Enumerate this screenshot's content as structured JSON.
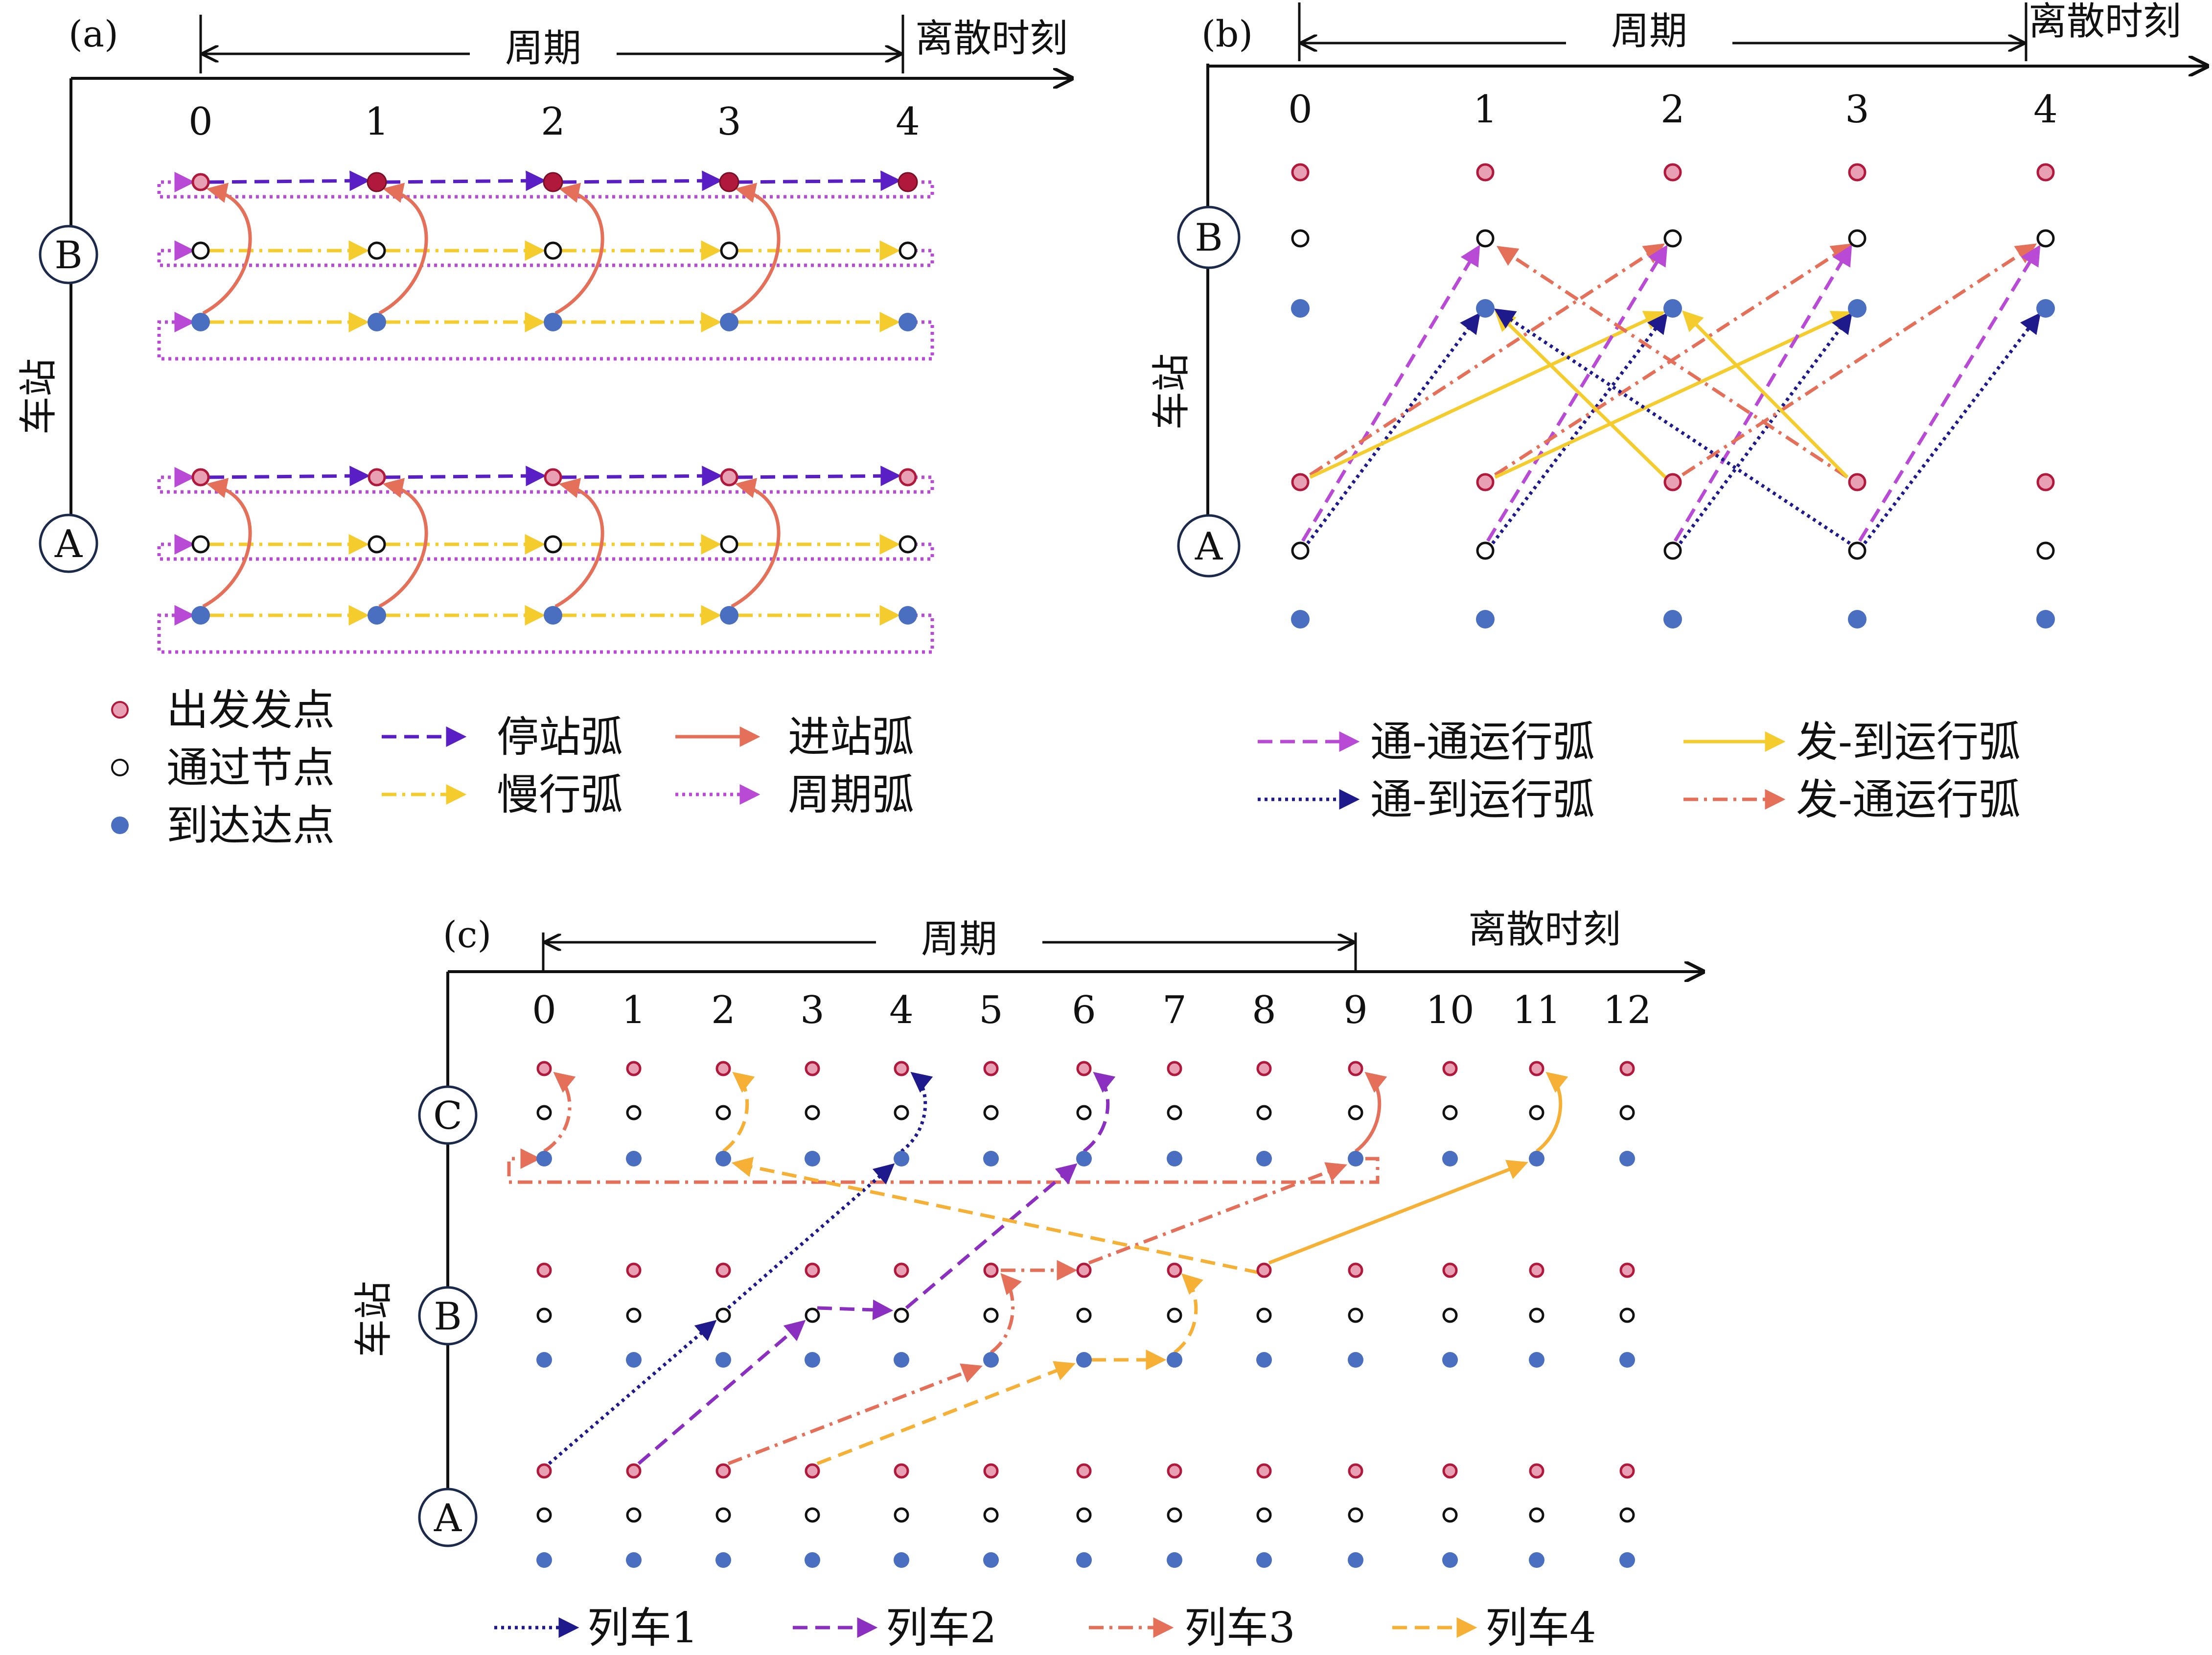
{
  "colors": {
    "depart_fill": "#e8a0b4",
    "depart_stroke": "#b0193c",
    "pass_stroke": "#111111",
    "arrive_fill": "#4a6fc1",
    "purple_dark": "#5a1fc4",
    "purple": "#8b2fc0",
    "magenta": "#b84ad6",
    "navy": "#1e1a8c",
    "salmon": "#e5705a",
    "yellow": "#f5cc2e",
    "orange": "#f5b035",
    "gold": "#f2b230"
  },
  "panel_a": {
    "label": "(a)",
    "period_label": "周期",
    "time_label": "离散时刻",
    "ticks": [
      "0",
      "1",
      "2",
      "3",
      "4"
    ],
    "stations": [
      "B",
      "A"
    ],
    "axis_title": "车站"
  },
  "panel_b": {
    "label": "(b)",
    "period_label": "周期",
    "time_label": "离散时刻",
    "ticks": [
      "0",
      "1",
      "2",
      "3",
      "4"
    ],
    "stations": [
      "B",
      "A"
    ],
    "axis_title": "车站"
  },
  "panel_c": {
    "label": "(c)",
    "period_label": "周期",
    "time_label": "离散时刻",
    "ticks": [
      "0",
      "1",
      "2",
      "3",
      "4",
      "5",
      "6",
      "7",
      "8",
      "9",
      "10",
      "11",
      "12"
    ],
    "stations": [
      "C",
      "B",
      "A"
    ],
    "axis_title": "车站"
  },
  "legend_a": {
    "depart": "出发发点",
    "pass": "通过节点",
    "arrive": "到达达点",
    "dwell": "停站弧",
    "slow": "慢行弧",
    "enter": "进站弧",
    "period": "周期弧"
  },
  "legend_b": {
    "pp": "通-通运行弧",
    "pa": "通-到运行弧",
    "da": "发-到运行弧",
    "dp": "发-通运行弧"
  },
  "legend_c": {
    "t1": "列车1",
    "t2": "列车2",
    "t3": "列车3",
    "t4": "列车4"
  }
}
